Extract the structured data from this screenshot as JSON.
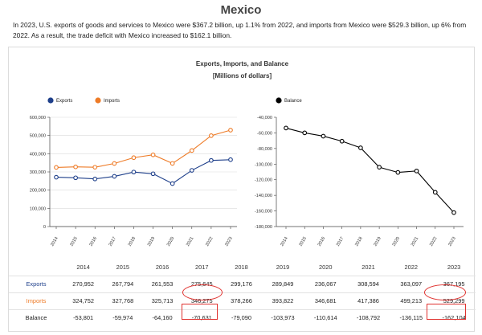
{
  "page": {
    "title": "Mexico",
    "intro": "In 2023, U.S. exports of goods and services to Mexico were $367.2 billion, up 1.1% from 2022, and imports from Mexico were $529.3 billion, up 6% from 2022. As a result, the trade deficit with Mexico increased to $162.1 billion."
  },
  "chart_data": [
    {
      "type": "line",
      "title": "Exports, Imports, and Balance",
      "subtitle": "[Millions of dollars]",
      "x": [
        "2014",
        "2015",
        "2016",
        "2017",
        "2018",
        "2019",
        "2020",
        "2021",
        "2022",
        "2023"
      ],
      "ylim": [
        0,
        600000
      ],
      "yticks": [
        "0",
        "100,000",
        "200,000",
        "300,000",
        "400,000",
        "500,000",
        "600,000"
      ],
      "grid": true,
      "legend": "top-left",
      "series": [
        {
          "name": "Exports",
          "color": "#1e3f8a",
          "values": [
            270952,
            267794,
            261553,
            275645,
            299176,
            289849,
            236067,
            308594,
            363097,
            367195
          ]
        },
        {
          "name": "Imports",
          "color": "#ee7b27",
          "values": [
            324752,
            327768,
            325713,
            346275,
            378266,
            393822,
            346681,
            417386,
            499213,
            529299
          ]
        }
      ]
    },
    {
      "type": "line",
      "x": [
        "2014",
        "2015",
        "2016",
        "2017",
        "2018",
        "2019",
        "2020",
        "2021",
        "2022",
        "2023"
      ],
      "ylim": [
        -180000,
        -40000
      ],
      "yticks": [
        "-40,000",
        "-60,000",
        "-80,000",
        "-100,000",
        "-120,000",
        "-140,000",
        "-160,000",
        "-180,000"
      ],
      "grid": false,
      "legend": "top-left",
      "series": [
        {
          "name": "Balance",
          "color": "#000000",
          "values": [
            -53801,
            -59974,
            -64160,
            -70631,
            -79090,
            -103973,
            -110614,
            -108792,
            -136115,
            -162104
          ]
        }
      ]
    }
  ],
  "table": {
    "years": [
      "2014",
      "2015",
      "2016",
      "2017",
      "2018",
      "2019",
      "2020",
      "2021",
      "2022",
      "2023"
    ],
    "rows": [
      {
        "label": "Exports",
        "cls": "lbl-exports",
        "cells": [
          "270,952",
          "267,794",
          "261,553",
          "275,645",
          "299,176",
          "289,849",
          "236,067",
          "308,594",
          "363,097",
          "367,195"
        ]
      },
      {
        "label": "Imports",
        "cls": "lbl-imports",
        "cells": [
          "324,752",
          "327,768",
          "325,713",
          "346,275",
          "378,266",
          "393,822",
          "346,681",
          "417,386",
          "499,213",
          "529,299"
        ]
      },
      {
        "label": "Balance",
        "cls": "lbl-balance",
        "cells": [
          "-53,801",
          "-59,974",
          "-64,160",
          "-70,631",
          "-79,090",
          "-103,973",
          "-110,614",
          "-108,792",
          "-136,115",
          "-162,104"
        ]
      }
    ],
    "highlight_color": "#e0322f"
  }
}
